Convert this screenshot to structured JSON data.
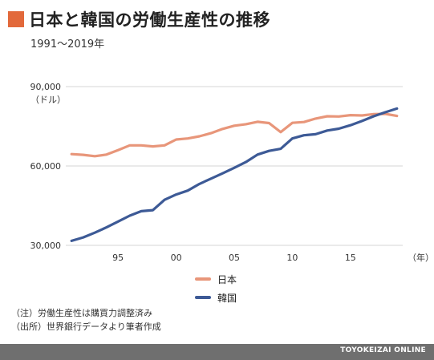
{
  "title": "日本と韓国の労働生産性の推移",
  "subtitle": "1991〜2019年",
  "notes": [
    "（注）労働生産性は購買力調整済み",
    "（出所）世界銀行データより筆者作成"
  ],
  "footer": "TOYOKEIZAI ONLINE",
  "colors": {
    "accent": "#e2693b",
    "japan": "#e8967a",
    "korea": "#3d5a96"
  },
  "chart_data": {
    "type": "line",
    "title": "",
    "xlabel": "（年）",
    "ylabel": "（ドル）",
    "ylim": [
      30000,
      90000
    ],
    "xlim": [
      1990.5,
      2019.5
    ],
    "yticks": [
      {
        "value": 30000,
        "label": "30,000"
      },
      {
        "value": 60000,
        "label": "60,000"
      },
      {
        "value": 90000,
        "label": "90,000"
      }
    ],
    "xticks": [
      {
        "value": 1995,
        "label": "95"
      },
      {
        "value": 2000,
        "label": "00"
      },
      {
        "value": 2005,
        "label": "05"
      },
      {
        "value": 2010,
        "label": "10"
      },
      {
        "value": 2015,
        "label": "15"
      }
    ],
    "x": [
      1991,
      1992,
      1993,
      1994,
      1995,
      1996,
      1997,
      1998,
      1999,
      2000,
      2001,
      2002,
      2003,
      2004,
      2005,
      2006,
      2007,
      2008,
      2009,
      2010,
      2011,
      2012,
      2013,
      2014,
      2015,
      2016,
      2017,
      2018,
      2019
    ],
    "series": [
      {
        "name": "日本",
        "color": "#e8967a",
        "values": [
          64500,
          64200,
          63700,
          64300,
          66000,
          67800,
          67800,
          67400,
          67800,
          70000,
          70400,
          71200,
          72400,
          74000,
          75200,
          75800,
          76700,
          76200,
          72800,
          76300,
          76600,
          77900,
          78800,
          78700,
          79200,
          79100,
          79600,
          79700,
          78900
        ]
      },
      {
        "name": "韓国",
        "color": "#3d5a96",
        "values": [
          31700,
          33000,
          34800,
          36800,
          39000,
          41200,
          42900,
          43300,
          47200,
          49200,
          50700,
          53200,
          55200,
          57200,
          59300,
          61500,
          64300,
          65700,
          66500,
          70400,
          71600,
          72000,
          73400,
          74100,
          75400,
          77000,
          78800,
          80300,
          81700
        ]
      }
    ],
    "legend": "bottom-center",
    "grid": true
  }
}
